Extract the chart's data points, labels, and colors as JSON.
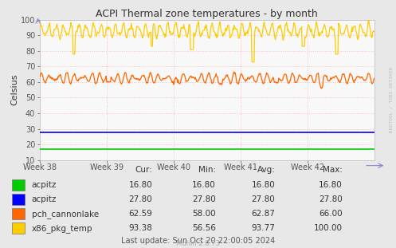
{
  "title": "ACPI Thermal zone temperatures - by month",
  "ylabel": "Celsius",
  "ylim": [
    10,
    100
  ],
  "yticks": [
    10,
    20,
    30,
    40,
    50,
    60,
    70,
    80,
    90,
    100
  ],
  "xtick_labels": [
    "Week 38",
    "Week 39",
    "Week 40",
    "Week 41",
    "Week 42"
  ],
  "bg_color": "#e8e8e8",
  "plot_bg_color": "#f8f8f8",
  "acpitz1_value": 16.8,
  "acpitz2_value": 27.8,
  "color_acpitz1": "#00cc00",
  "color_acpitz2": "#0000ff",
  "color_pch": "#ff6600",
  "color_x86": "#ffcc00",
  "legend_items": [
    {
      "label": "acpitz",
      "color": "#00cc00"
    },
    {
      "label": "acpitz",
      "color": "#0000ff"
    },
    {
      "label": "pch_cannonlake",
      "color": "#ff6600"
    },
    {
      "label": "x86_pkg_temp",
      "color": "#ffcc00"
    }
  ],
  "cur_values": [
    16.8,
    27.8,
    62.59,
    93.38
  ],
  "min_values": [
    16.8,
    27.8,
    58.0,
    56.56
  ],
  "avg_values": [
    16.8,
    27.8,
    62.87,
    93.77
  ],
  "max_values": [
    16.8,
    27.8,
    66.0,
    100.0
  ],
  "footer": "Last update: Sun Oct 20 22:00:05 2024",
  "munin_version": "Munin 2.0.73",
  "watermark": "RRDTOOL / TOBI OETIKER"
}
